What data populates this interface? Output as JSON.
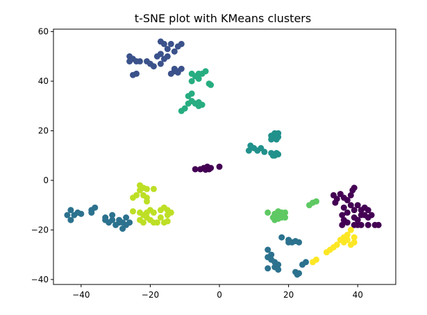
{
  "chart_data": {
    "type": "scatter",
    "title": "t-SNE plot with KMeans clusters",
    "xlabel": "",
    "ylabel": "",
    "xlim": [
      -48,
      51
    ],
    "ylim": [
      -42,
      61
    ],
    "x_ticks": [
      -40,
      -20,
      0,
      20,
      40
    ],
    "x_tick_labels": [
      "−40",
      "−20",
      "0",
      "20",
      "40"
    ],
    "y_ticks": [
      -40,
      -20,
      0,
      20,
      40,
      60
    ],
    "y_tick_labels": [
      "−40",
      "−20",
      "0",
      "20",
      "40",
      "60"
    ],
    "grid": false,
    "legend": "none",
    "series": [
      {
        "color": "#440154",
        "points": [
          [
            33,
            -6
          ],
          [
            34,
            -7.5
          ],
          [
            35,
            -5.5
          ],
          [
            36,
            -7
          ],
          [
            33.5,
            -9
          ],
          [
            37,
            -8
          ],
          [
            38,
            -6
          ],
          [
            39,
            -3
          ],
          [
            38.5,
            -4
          ],
          [
            36,
            -11
          ],
          [
            38,
            -10
          ],
          [
            39,
            -12
          ],
          [
            40,
            -10
          ],
          [
            41,
            -12
          ],
          [
            42,
            -11
          ],
          [
            43,
            -12
          ],
          [
            44,
            -14
          ],
          [
            43,
            -15
          ],
          [
            42,
            -14
          ],
          [
            41,
            -14
          ],
          [
            40,
            -16
          ],
          [
            39,
            -15
          ],
          [
            37,
            -13
          ],
          [
            35.5,
            -14
          ],
          [
            36,
            -16
          ],
          [
            35.5,
            -18
          ],
          [
            37,
            -17
          ],
          [
            39,
            -18
          ],
          [
            40,
            -18
          ],
          [
            41,
            -18
          ],
          [
            43,
            -18
          ],
          [
            45,
            -18
          ],
          [
            46,
            -18
          ],
          [
            -7,
            4.5
          ],
          [
            -5.5,
            4.5
          ],
          [
            -4.5,
            5
          ],
          [
            -3.5,
            5.5
          ],
          [
            -3,
            4.5
          ],
          [
            -2.5,
            5
          ],
          [
            -4,
            4.3
          ],
          [
            0,
            5.5
          ]
        ]
      },
      {
        "color": "#3b528b",
        "points": [
          [
            -17,
            56
          ],
          [
            -16,
            55
          ],
          [
            -14,
            55
          ],
          [
            -12,
            54
          ],
          [
            -11,
            55
          ],
          [
            -15,
            53
          ],
          [
            -13,
            52
          ],
          [
            -17,
            51
          ],
          [
            -18,
            50
          ],
          [
            -16,
            49
          ],
          [
            -15,
            50
          ],
          [
            -26,
            50
          ],
          [
            -25,
            49
          ],
          [
            -26,
            48
          ],
          [
            -24,
            48
          ],
          [
            -23,
            48
          ],
          [
            -21,
            48
          ],
          [
            -20,
            47
          ],
          [
            -19,
            46
          ],
          [
            -17,
            47
          ],
          [
            -13,
            45
          ],
          [
            -12,
            44
          ],
          [
            -11,
            45
          ],
          [
            -13,
            44
          ],
          [
            -14,
            43
          ],
          [
            -12,
            43.5
          ],
          [
            -25,
            42.5
          ],
          [
            -24,
            43
          ]
        ]
      },
      {
        "color": "#2c728e",
        "points": [
          [
            -43,
            -12
          ],
          [
            -42,
            -14
          ],
          [
            -43,
            -16
          ],
          [
            -44,
            -14
          ],
          [
            -41,
            -13
          ],
          [
            -40,
            -13.5
          ],
          [
            -37,
            -12
          ],
          [
            -36,
            -11
          ],
          [
            -37,
            -13
          ],
          [
            -33,
            -15
          ],
          [
            -31,
            -14
          ],
          [
            -32,
            -17
          ],
          [
            -30,
            -18
          ],
          [
            -29,
            -16
          ],
          [
            -28,
            -17
          ],
          [
            -27,
            -15
          ],
          [
            -27,
            -18
          ],
          [
            -28,
            -19.5
          ],
          [
            -29,
            -17
          ],
          [
            -31,
            -16
          ],
          [
            -26,
            -17
          ],
          [
            -33,
            -16
          ],
          [
            18,
            -23
          ],
          [
            20,
            -24
          ],
          [
            20,
            -25
          ],
          [
            21,
            -25
          ],
          [
            22,
            -24.5
          ],
          [
            23,
            -25
          ],
          [
            14,
            -28
          ],
          [
            15,
            -30
          ],
          [
            14,
            -31
          ],
          [
            15,
            -32
          ],
          [
            16,
            -33
          ],
          [
            17,
            -34
          ],
          [
            17,
            -36
          ],
          [
            16,
            -35
          ],
          [
            14,
            -35.5
          ],
          [
            22,
            -37
          ],
          [
            23,
            -37.5
          ],
          [
            22.5,
            -38
          ],
          [
            24,
            -34
          ],
          [
            25,
            -33
          ]
        ]
      },
      {
        "color": "#21918c",
        "points": [
          [
            15,
            18
          ],
          [
            16,
            19
          ],
          [
            17,
            19
          ],
          [
            15.5,
            17
          ],
          [
            16.5,
            16.5
          ],
          [
            17,
            17.5
          ],
          [
            16,
            18.5
          ],
          [
            15,
            16.5
          ],
          [
            12,
            13
          ],
          [
            11,
            12
          ],
          [
            10,
            13
          ],
          [
            9,
            14
          ],
          [
            8.5,
            12
          ],
          [
            13,
            11.5
          ],
          [
            15,
            11
          ],
          [
            16,
            10
          ],
          [
            17,
            10.5
          ],
          [
            15.5,
            10
          ],
          [
            16.5,
            11
          ]
        ]
      },
      {
        "color": "#27ad81",
        "points": [
          [
            -8,
            43
          ],
          [
            -7,
            42
          ],
          [
            -6,
            43
          ],
          [
            -5,
            43
          ],
          [
            -4,
            44
          ],
          [
            -6,
            41
          ],
          [
            -8,
            40
          ],
          [
            -3,
            39
          ],
          [
            -2.5,
            38.5
          ],
          [
            -9,
            34
          ],
          [
            -8,
            35
          ],
          [
            -8,
            32
          ],
          [
            -7,
            31
          ],
          [
            -9,
            31
          ],
          [
            -6,
            30
          ],
          [
            -5,
            30.5
          ],
          [
            -6,
            31.5
          ],
          [
            -11,
            28
          ],
          [
            -10,
            29
          ]
        ]
      },
      {
        "color": "#5ec962",
        "points": [
          [
            14,
            -13
          ],
          [
            16,
            -13.5
          ],
          [
            17,
            -12.5
          ],
          [
            18,
            -13
          ],
          [
            19,
            -13
          ],
          [
            17,
            -14
          ],
          [
            18,
            -15
          ],
          [
            19,
            -15
          ],
          [
            17,
            -15.5
          ],
          [
            16,
            -16
          ],
          [
            15.5,
            -15
          ],
          [
            26,
            -10
          ],
          [
            27,
            -9
          ],
          [
            28,
            -8.5
          ]
        ]
      },
      {
        "color": "#bddf26",
        "points": [
          [
            -23,
            -2
          ],
          [
            -22,
            -3
          ],
          [
            -23,
            -4
          ],
          [
            -21,
            -3.5
          ],
          [
            -19,
            -3.5
          ],
          [
            -24,
            -6
          ],
          [
            -22,
            -6
          ],
          [
            -21,
            -7
          ],
          [
            -25,
            -7
          ],
          [
            -21,
            -8.5
          ],
          [
            -23,
            -13
          ],
          [
            -22,
            -14
          ],
          [
            -21,
            -13
          ],
          [
            -20,
            -12
          ],
          [
            -19,
            -13
          ],
          [
            -17,
            -12
          ],
          [
            -16,
            -11
          ],
          [
            -15,
            -12
          ],
          [
            -14,
            -13
          ],
          [
            -15,
            -14
          ],
          [
            -21,
            -15
          ],
          [
            -20,
            -16
          ],
          [
            -19,
            -17
          ],
          [
            -18,
            -17
          ],
          [
            -16,
            -17
          ],
          [
            -15,
            -16.5
          ],
          [
            -17,
            -15
          ],
          [
            -23,
            -16
          ],
          [
            -22,
            -17
          ],
          [
            -25,
            -12.5
          ]
        ]
      },
      {
        "color": "#fde725",
        "points": [
          [
            38,
            -20
          ],
          [
            37,
            -22
          ],
          [
            36,
            -23
          ],
          [
            35,
            -24
          ],
          [
            36,
            -25
          ],
          [
            37,
            -24
          ],
          [
            39,
            -23
          ],
          [
            39,
            -25
          ],
          [
            38,
            -26
          ],
          [
            34,
            -26
          ],
          [
            33,
            -27
          ],
          [
            32,
            -28
          ],
          [
            31,
            -29
          ],
          [
            28,
            -32
          ],
          [
            27,
            -33
          ]
        ]
      }
    ]
  }
}
